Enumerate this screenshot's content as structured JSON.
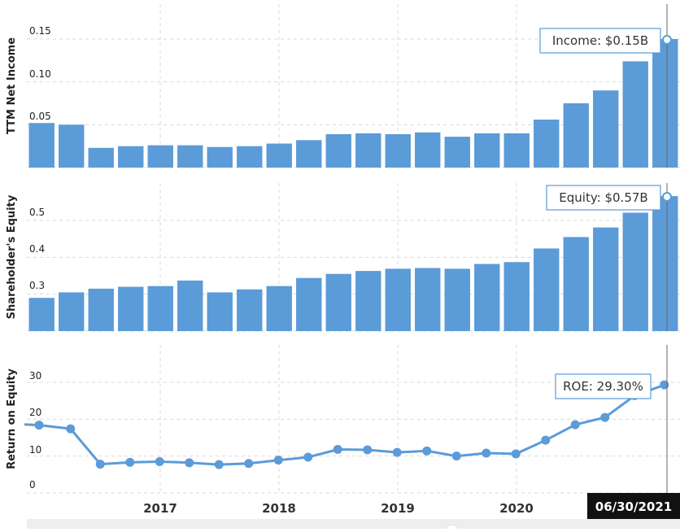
{
  "chart_data": [
    {
      "type": "bar",
      "ylabel": "TTM Net Income",
      "ylim": [
        0,
        0.15
      ],
      "yticks": [
        "0.00",
        "0.05",
        "0.10",
        "0.15"
      ],
      "tooltip": "Income: $0.15B",
      "values": [
        0.052,
        0.05,
        0.023,
        0.025,
        0.026,
        0.026,
        0.024,
        0.025,
        0.028,
        0.032,
        0.039,
        0.04,
        0.039,
        0.041,
        0.036,
        0.04,
        0.04,
        0.056,
        0.075,
        0.09,
        0.124,
        0.15
      ]
    },
    {
      "type": "bar",
      "ylabel": "Shareholder's Equity",
      "ylim": [
        0.2,
        0.57
      ],
      "yticks": [
        "0.2",
        "0.3",
        "0.4",
        "0.5"
      ],
      "tooltip": "Equity: $0.57B",
      "values": [
        0.29,
        0.305,
        0.315,
        0.32,
        0.322,
        0.337,
        0.305,
        0.313,
        0.322,
        0.344,
        0.355,
        0.363,
        0.369,
        0.371,
        0.369,
        0.382,
        0.387,
        0.424,
        0.455,
        0.481,
        0.521,
        0.566
      ]
    },
    {
      "type": "line",
      "ylabel": "Return on Equity",
      "ylim": [
        0,
        30
      ],
      "yticks": [
        "0",
        "10",
        "20",
        "30"
      ],
      "tooltip": "ROE: 29.30%",
      "values": [
        18.4,
        17.4,
        7.8,
        8.3,
        8.5,
        8.2,
        7.7,
        8.0,
        8.9,
        9.7,
        11.8,
        11.7,
        11.0,
        11.4,
        10.0,
        10.8,
        10.6,
        14.3,
        18.5,
        20.5,
        26.4,
        29.3
      ]
    }
  ],
  "x_axis": {
    "labels": [
      "2017",
      "2018",
      "2019",
      "2020"
    ],
    "date_badge": "06/30/2021"
  },
  "colors": {
    "bar": "#5b9bd8",
    "line": "#5b9bd8",
    "grid": "#d9d9d9",
    "tooltip_border": "#5b9bd8",
    "badge_bg": "#111111"
  }
}
